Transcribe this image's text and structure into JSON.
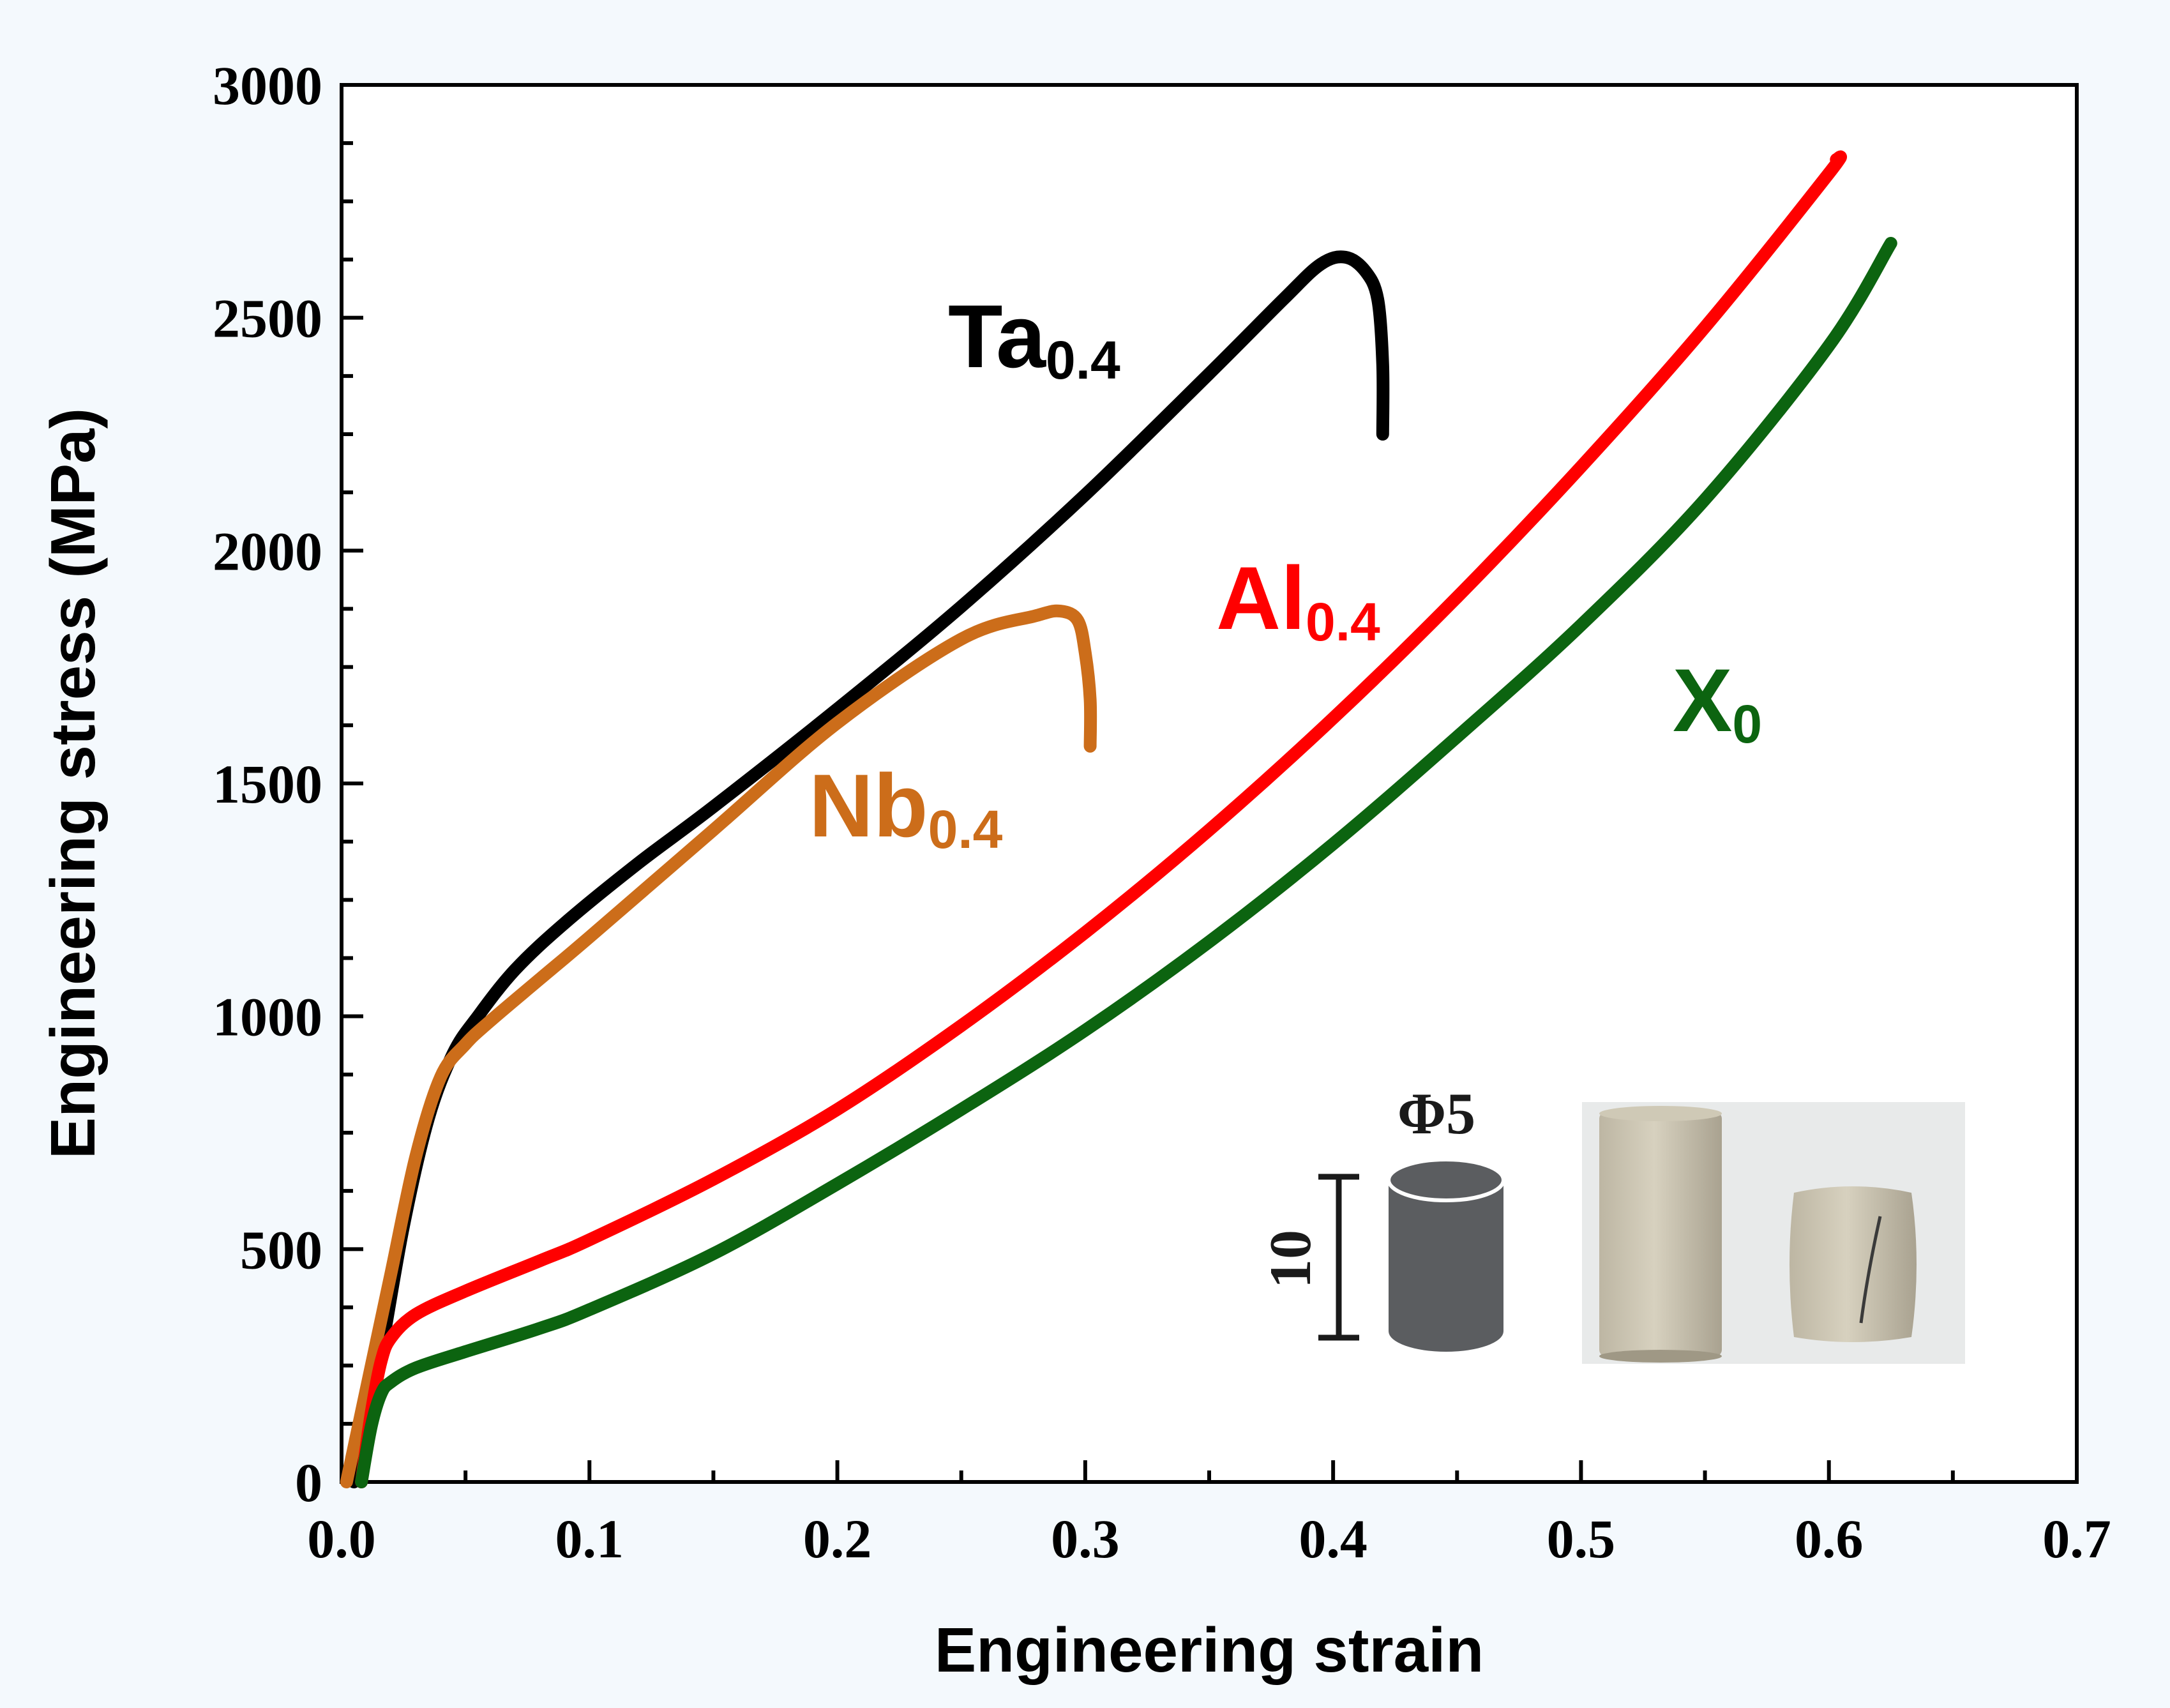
{
  "chart_data": {
    "type": "line",
    "xlabel": "Engineering strain",
    "ylabel": "Engineering stress (MPa)",
    "xlim": [
      0.0,
      0.7
    ],
    "ylim": [
      0,
      3000
    ],
    "xticks": [
      0.0,
      0.1,
      0.2,
      0.3,
      0.4,
      0.5,
      0.6,
      0.7
    ],
    "yticks": [
      0,
      500,
      1000,
      1500,
      2000,
      2500,
      3000
    ],
    "xtick_labels": [
      "0.0",
      "0.1",
      "0.2",
      "0.3",
      "0.4",
      "0.5",
      "0.6",
      "0.7"
    ],
    "ytick_labels": [
      "0",
      "500",
      "1000",
      "1500",
      "2000",
      "2500",
      "3000"
    ],
    "grid": false,
    "series": [
      {
        "name": "Ta0.4",
        "label_main": "Ta",
        "label_sub": "0.4",
        "color": "#000000",
        "x": [
          0.005,
          0.015,
          0.025,
          0.035,
          0.045,
          0.055,
          0.07,
          0.09,
          0.12,
          0.15,
          0.2,
          0.25,
          0.3,
          0.35,
          0.38,
          0.395,
          0.405,
          0.413,
          0.418,
          0.42,
          0.42
        ],
        "y": [
          0,
          250,
          550,
          780,
          920,
          1000,
          1100,
          1200,
          1330,
          1450,
          1660,
          1880,
          2120,
          2380,
          2540,
          2615,
          2630,
          2600,
          2540,
          2400,
          2250
        ]
      },
      {
        "name": "Nb0.4",
        "label_main": "Nb",
        "label_sub": "0.4",
        "color": "#cc6d1a",
        "x": [
          0.002,
          0.01,
          0.02,
          0.03,
          0.04,
          0.05,
          0.06,
          0.08,
          0.1,
          0.15,
          0.2,
          0.25,
          0.28,
          0.29,
          0.297,
          0.3,
          0.302,
          0.302
        ],
        "y": [
          0,
          200,
          450,
          700,
          870,
          940,
          990,
          1080,
          1170,
          1400,
          1630,
          1810,
          1860,
          1870,
          1850,
          1780,
          1680,
          1580
        ]
      },
      {
        "name": "Al0.4",
        "label_main": "Al",
        "label_sub": "0.4",
        "color": "#ff0000",
        "x": [
          0.008,
          0.012,
          0.016,
          0.02,
          0.03,
          0.05,
          0.08,
          0.1,
          0.15,
          0.2,
          0.25,
          0.3,
          0.35,
          0.4,
          0.45,
          0.5,
          0.55,
          0.6,
          0.603
        ],
        "y": [
          0,
          150,
          260,
          310,
          360,
          410,
          475,
          520,
          650,
          800,
          980,
          1180,
          1400,
          1640,
          1900,
          2180,
          2480,
          2810,
          2840
        ]
      },
      {
        "name": "X0",
        "label_main": "X",
        "label_sub": "0",
        "color": "#0c6410",
        "x": [
          0.008,
          0.012,
          0.016,
          0.02,
          0.03,
          0.05,
          0.08,
          0.1,
          0.15,
          0.2,
          0.25,
          0.3,
          0.35,
          0.4,
          0.45,
          0.5,
          0.55,
          0.6,
          0.625
        ],
        "y": [
          0,
          120,
          190,
          215,
          245,
          280,
          330,
          370,
          490,
          640,
          800,
          970,
          1160,
          1370,
          1600,
          1840,
          2110,
          2440,
          2660
        ]
      }
    ],
    "inset": {
      "diameter_label": "Φ5",
      "height_label": "10"
    }
  }
}
